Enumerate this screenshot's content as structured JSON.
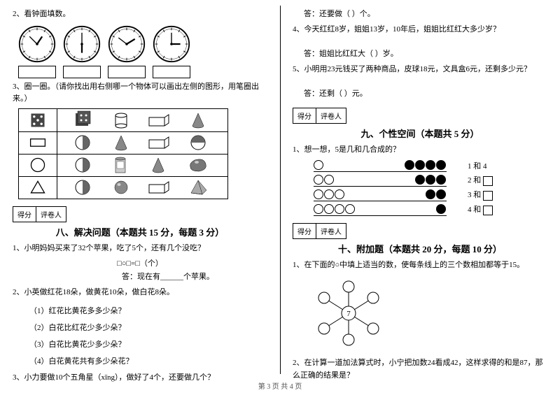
{
  "left": {
    "q2": "2、看钟面填数。",
    "clocks": [
      {
        "hour": 7,
        "min": 40
      },
      {
        "hour": 6,
        "min": 0
      },
      {
        "hour": 9,
        "min": 45
      },
      {
        "hour": 3,
        "min": 0
      }
    ],
    "q3": "3、圈一圈。（请你找出用右侧哪一个物体可以画出左侧的图形，用笔圈出来。）",
    "shapes_left": [
      "square-dotted",
      "rect",
      "circle",
      "triangle"
    ],
    "shapes_right": [
      [
        "dice",
        "cylinder",
        "cuboid",
        "cone"
      ],
      [
        "half-circle",
        "cone",
        "cuboid",
        "half-circle-v"
      ],
      [
        "half-circle-v",
        "can",
        "cone",
        "sphere"
      ],
      [
        "half-circle-v",
        "ball",
        "cuboid",
        "pyramid"
      ]
    ],
    "score_label1": "得分",
    "score_label2": "评卷人",
    "sec8_title": "八、解决问题（本题共 15 分，每题 3 分）",
    "s8q1": "1、小明妈妈买来了32个苹果，吃了5个，还有几个没吃？",
    "s8q1_eq": "□○□=□（个）",
    "s8q1_ans": "答：现在有______个苹果。",
    "s8q2": "2、小英做红花18朵，做黄花10朵，做白花8朵。",
    "s8q2a": "（1）红花比黄花多多少朵？",
    "s8q2b": "（2）白花比红花少多少朵？",
    "s8q2c": "（3）白花比黄花少多少朵？",
    "s8q2d": "（4）白花黄花共有多少朵花？",
    "s8q3": "3、小力要做10个五角星（xīng），做好了4个，还要做几个？"
  },
  "right": {
    "ans1": "答：还要做（ ）个。",
    "q4": "4、今天红红8岁，姐姐13岁，10年后，姐姐比红红大多少岁？",
    "ans4": "答：姐姐比红红大（ ）岁。",
    "q5": "5、小明用23元钱买了两种商品，皮球18元，文具盒6元，还剩多少元？",
    "ans5": "答：还剩（ ）元。",
    "score_label1": "得分",
    "score_label2": "评卷人",
    "sec9_title": "九、个性空间（本题共 5 分）",
    "s9q1": "1、想一想，5是几和几合成的？",
    "dots": [
      {
        "open": 1,
        "fill": 4,
        "label": "1 和  4"
      },
      {
        "open": 2,
        "fill": 3,
        "label": "2 和"
      },
      {
        "open": 3,
        "fill": 2,
        "label": "3 和"
      },
      {
        "open": 4,
        "fill": 1,
        "label": "4 和"
      }
    ],
    "sec10_title": "十、附加题（本题共 20 分，每题 10 分）",
    "s10q1": "1、在下面的○中填上适当的数，使每条线上的三个数相加都等于15。",
    "star_center": "7",
    "s10q2": "2、在计算一道加法算式时，小宁把加数24看成42，这样求得的和是87，那么正确的结果是？"
  },
  "footer": "第 3 页  共 4 页"
}
